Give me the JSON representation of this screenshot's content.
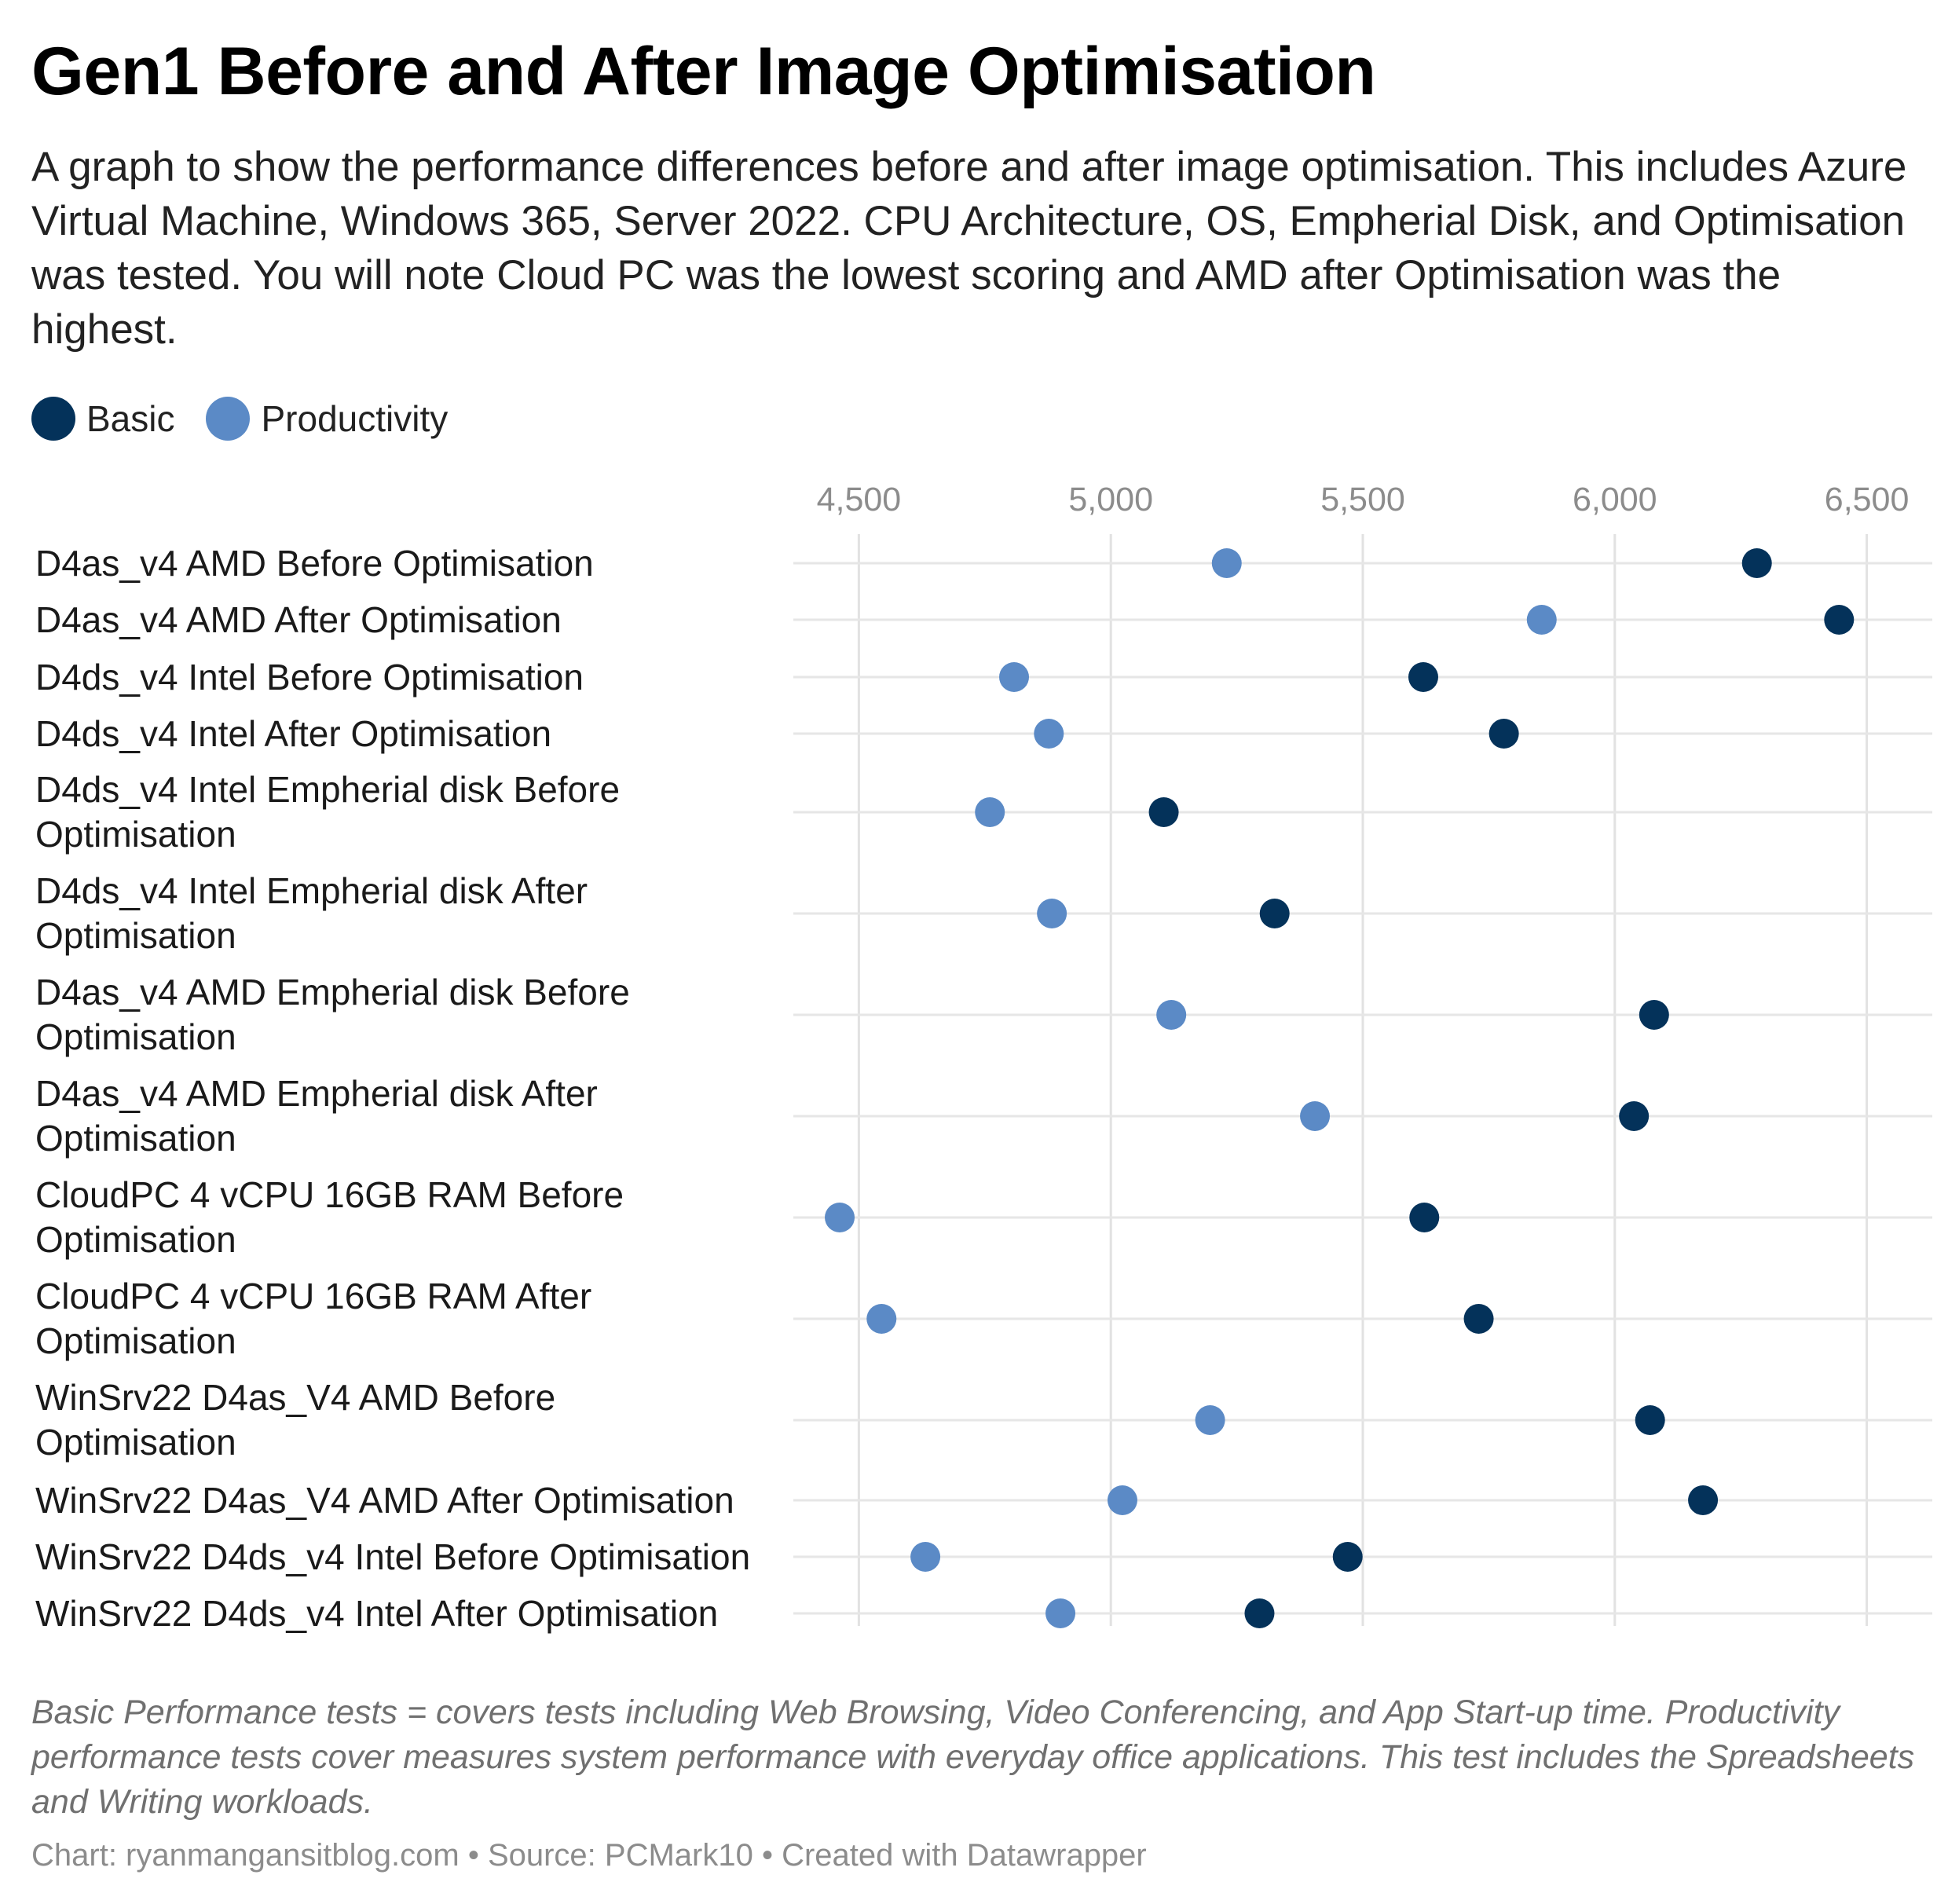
{
  "header": {
    "title": "Gen1 Before and After Image Optimisation",
    "subtitle": "A graph to show the performance differences before and after image optimisation. This includes Azure Virtual Machine, Windows 365, Server 2022. CPU Architecture, OS, Empherial Disk, and Optimisation was tested. You will note Cloud PC was the lowest scoring and AMD after Optimisation was the highest."
  },
  "legend": {
    "items": [
      {
        "label": "Basic",
        "color": "#04325a"
      },
      {
        "label": "Productivity",
        "color": "#5b8ac6"
      }
    ]
  },
  "notes": "Basic Performance tests = covers tests including Web Browsing, Video Conferencing, and App Start-up time. Productivity performance tests cover measures system performance with everyday office applications. This test includes the Spreadsheets and Writing workloads.",
  "footer": "Chart: ryanmangansitblog.com • Source: PCMark10 • Created with Datawrapper",
  "chart_data": {
    "type": "scatter",
    "title": "Gen1 Before and After Image Optimisation",
    "xlim": [
      4370,
      6630
    ],
    "xticks": [
      4500,
      5000,
      5500,
      6000,
      6500
    ],
    "xtick_labels": [
      "4,500",
      "5,000",
      "5,500",
      "6,000",
      "6,500"
    ],
    "grid": true,
    "legend_position": "top-left",
    "categories": [
      [
        "D4as_v4 AMD Before Optimisation"
      ],
      [
        "D4as_v4 AMD After Optimisation"
      ],
      [
        "D4ds_v4 Intel Before Optimisation"
      ],
      [
        "D4ds_v4 Intel After Optimisation"
      ],
      [
        "D4ds_v4 Intel Empherial disk Before",
        "Optimisation"
      ],
      [
        "D4ds_v4 Intel Empherial disk After",
        "Optimisation"
      ],
      [
        "D4as_v4 AMD Empherial disk Before",
        "Optimisation"
      ],
      [
        "D4as_v4 AMD Empherial disk After",
        "Optimisation"
      ],
      [
        "CloudPC 4 vCPU 16GB RAM Before",
        "Optimisation"
      ],
      [
        "CloudPC 4 vCPU 16GB RAM After",
        "Optimisation"
      ],
      [
        "WinSrv22 D4as_V4 AMD Before",
        "Optimisation"
      ],
      [
        "WinSrv22 D4as_V4 AMD After Optimisation"
      ],
      [
        "WinSrv22 D4ds_v4 Intel Before Optimisation"
      ],
      [
        "WinSrv22 D4ds_v4 Intel After Optimisation"
      ]
    ],
    "series": [
      {
        "name": "Basic",
        "color": "#04325a",
        "values": [
          6282,
          6445,
          5620,
          5780,
          5105,
          5325,
          6078,
          6038,
          5622,
          5730,
          6070,
          6175,
          5470,
          5295
        ]
      },
      {
        "name": "Productivity",
        "color": "#5b8ac6",
        "values": [
          5230,
          5855,
          4808,
          4877,
          4760,
          4883,
          5120,
          5405,
          4462,
          4545,
          5197,
          5023,
          4632,
          4900
        ]
      }
    ]
  }
}
